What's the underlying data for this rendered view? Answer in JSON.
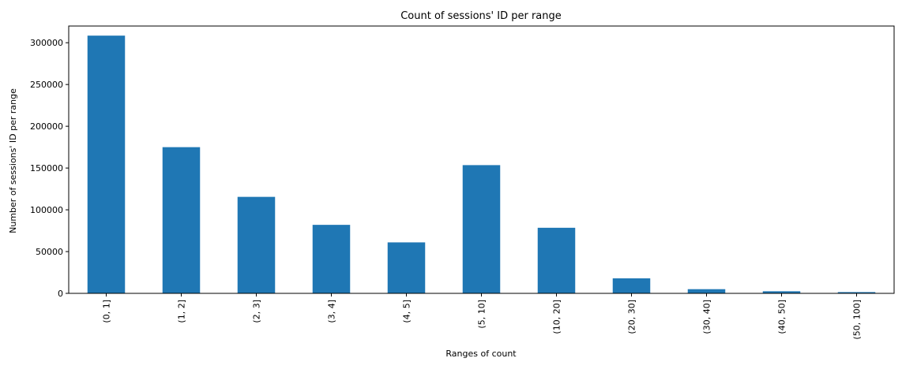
{
  "chart_data": {
    "type": "bar",
    "title": "Count of sessions' ID per range",
    "xlabel": "Ranges of count",
    "ylabel": "Number of sessions' ID per range",
    "categories": [
      "(0, 1]",
      "(1, 2]",
      "(2, 3]",
      "(3, 4]",
      "(4, 5]",
      "(5, 10]",
      "(10, 20]",
      "(20, 30]",
      "(30, 40]",
      "(40, 50]",
      "(50, 100]"
    ],
    "values": [
      308500,
      175000,
      115500,
      82000,
      61000,
      153500,
      78500,
      18000,
      5000,
      2500,
      1500
    ],
    "ylim": [
      0,
      320000
    ],
    "yticks": [
      0,
      50000,
      100000,
      150000,
      200000,
      250000,
      300000
    ],
    "ytick_labels": [
      "0",
      "50000",
      "100000",
      "150000",
      "200000",
      "250000",
      "300000"
    ],
    "bar_color": "#1f77b4",
    "grid": false,
    "legend": "none"
  }
}
